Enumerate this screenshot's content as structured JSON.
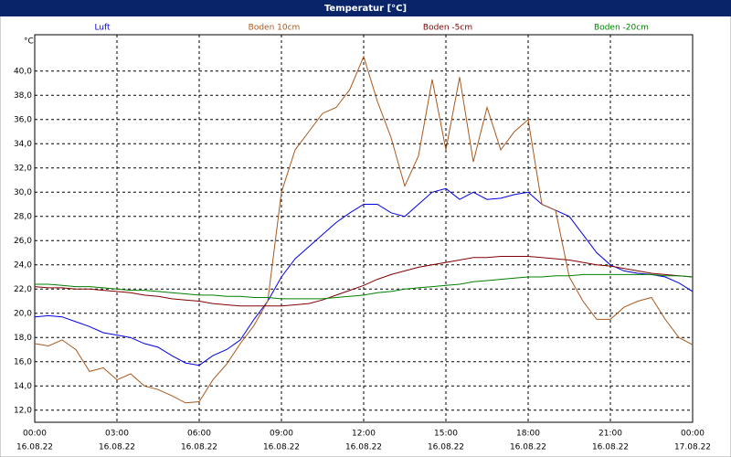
{
  "chart_data": {
    "type": "line",
    "title": "Temperatur [°C]",
    "y_unit": "°C",
    "x": [
      0,
      0.5,
      1,
      1.5,
      2,
      2.5,
      3,
      3.5,
      4,
      4.5,
      5,
      5.5,
      6,
      6.5,
      7,
      7.5,
      8,
      8.5,
      9,
      9.5,
      10,
      10.5,
      11,
      11.5,
      12,
      12.5,
      13,
      13.5,
      14,
      14.5,
      15,
      15.5,
      16,
      16.5,
      17,
      17.5,
      18,
      18.5,
      19,
      19.5,
      20,
      20.5,
      21,
      21.5,
      22,
      22.5,
      23,
      23.5,
      24
    ],
    "series": [
      {
        "name": "Luft",
        "color": "#0000e6",
        "values": [
          19.7,
          19.8,
          19.7,
          19.3,
          18.9,
          18.4,
          18.2,
          18.0,
          17.5,
          17.2,
          16.5,
          15.9,
          15.7,
          16.5,
          17.0,
          17.8,
          19.5,
          21.0,
          23.0,
          24.5,
          25.5,
          26.5,
          27.5,
          28.3,
          29.0,
          29.0,
          28.3,
          28.0,
          29.0,
          30.0,
          30.3,
          29.4,
          30.0,
          29.4,
          29.5,
          29.8,
          30.0,
          29.0,
          28.5,
          28.0,
          26.5,
          25.0,
          24.0,
          23.5,
          23.3,
          23.2,
          23.0,
          22.5,
          21.8
        ]
      },
      {
        "name": "Boden 10cm",
        "color": "#a8581e",
        "values": [
          17.5,
          17.3,
          17.8,
          17.0,
          15.2,
          15.5,
          14.5,
          15.0,
          14.0,
          13.7,
          13.2,
          12.6,
          12.7,
          14.5,
          15.8,
          17.5,
          19.0,
          21.0,
          30.0,
          33.5,
          35.0,
          36.5,
          37.0,
          38.5,
          41.2,
          37.5,
          34.5,
          30.5,
          33.0,
          39.3,
          33.5,
          39.5,
          32.5,
          37.0,
          33.5,
          35.0,
          36.0,
          29.0,
          28.5,
          23.0,
          21.0,
          19.5,
          19.5,
          20.5,
          21.0,
          21.3,
          19.5,
          18.0,
          17.4
        ]
      },
      {
        "name": "Boden -5cm",
        "color": "#800000",
        "values": [
          22.2,
          22.1,
          22.1,
          22.0,
          22.0,
          21.9,
          21.8,
          21.7,
          21.5,
          21.4,
          21.2,
          21.1,
          21.0,
          20.8,
          20.7,
          20.6,
          20.6,
          20.6,
          20.6,
          20.7,
          20.8,
          21.1,
          21.5,
          21.9,
          22.3,
          22.8,
          23.2,
          23.5,
          23.8,
          24.0,
          24.2,
          24.4,
          24.6,
          24.6,
          24.7,
          24.7,
          24.7,
          24.6,
          24.5,
          24.4,
          24.2,
          24.0,
          23.9,
          23.7,
          23.5,
          23.3,
          23.2,
          23.1,
          23.0
        ]
      },
      {
        "name": "Boden -20cm",
        "color": "#008000",
        "values": [
          22.4,
          22.4,
          22.3,
          22.2,
          22.2,
          22.1,
          22.0,
          21.9,
          21.9,
          21.8,
          21.7,
          21.6,
          21.5,
          21.5,
          21.4,
          21.4,
          21.3,
          21.3,
          21.2,
          21.2,
          21.2,
          21.2,
          21.3,
          21.4,
          21.5,
          21.7,
          21.8,
          22.0,
          22.1,
          22.2,
          22.3,
          22.4,
          22.6,
          22.7,
          22.8,
          22.9,
          23.0,
          23.0,
          23.1,
          23.1,
          23.2,
          23.2,
          23.2,
          23.2,
          23.2,
          23.2,
          23.1,
          23.1,
          23.0
        ]
      }
    ],
    "xlim": [
      0,
      24
    ],
    "xticks": [
      {
        "value": 0,
        "label": "00:00",
        "date": "16.08.22"
      },
      {
        "value": 3,
        "label": "03:00",
        "date": "16.08.22"
      },
      {
        "value": 6,
        "label": "06:00",
        "date": "16.08.22"
      },
      {
        "value": 9,
        "label": "09:00",
        "date": "16.08.22"
      },
      {
        "value": 12,
        "label": "12:00",
        "date": "16.08.22"
      },
      {
        "value": 15,
        "label": "15:00",
        "date": "16.08.22"
      },
      {
        "value": 18,
        "label": "18:00",
        "date": "16.08.22"
      },
      {
        "value": 21,
        "label": "21:00",
        "date": "16.08.22"
      },
      {
        "value": 24,
        "label": "00:00",
        "date": "17.08.22"
      }
    ],
    "ylim": [
      11,
      43
    ],
    "yticks": [
      {
        "value": 12,
        "label": "12,0"
      },
      {
        "value": 14,
        "label": "14,0"
      },
      {
        "value": 16,
        "label": "16,0"
      },
      {
        "value": 18,
        "label": "18,0"
      },
      {
        "value": 20,
        "label": "20,0"
      },
      {
        "value": 22,
        "label": "22,0"
      },
      {
        "value": 24,
        "label": "24,0"
      },
      {
        "value": 26,
        "label": "26,0"
      },
      {
        "value": 28,
        "label": "28,0"
      },
      {
        "value": 30,
        "label": "30,0"
      },
      {
        "value": 32,
        "label": "32,0"
      },
      {
        "value": 34,
        "label": "34,0"
      },
      {
        "value": 36,
        "label": "36,0"
      },
      {
        "value": 38,
        "label": "38,0"
      },
      {
        "value": 40,
        "label": "40,0"
      }
    ],
    "grid": true
  }
}
